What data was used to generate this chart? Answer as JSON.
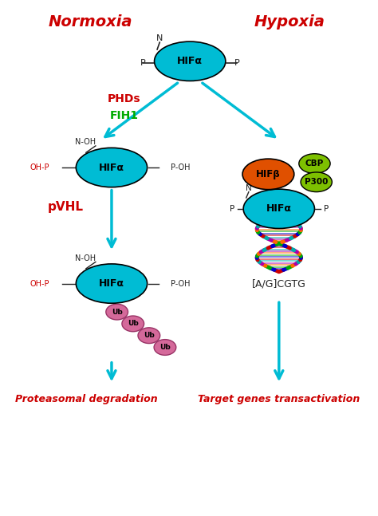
{
  "title_normoxia": "Normoxia",
  "title_hypoxia": "Hypoxia",
  "title_color": "#cc0000",
  "hifa_color": "#00bcd4",
  "hifb_color": "#e05000",
  "cbp_p300_color": "#7dc000",
  "ub_color": "#d4699a",
  "arrow_color": "#00bcd4",
  "text_color_red": "#cc0000",
  "text_color_green": "#00aa00",
  "text_color_dark": "#222222",
  "label_proteasomal": "Proteasomal degradation",
  "label_target": "Target genes transactivation",
  "label_phds": "PHDs",
  "label_fih1": "FIH1",
  "label_pvhl": "pVHL",
  "label_ag_cgtg": "[A/G]CGTG"
}
